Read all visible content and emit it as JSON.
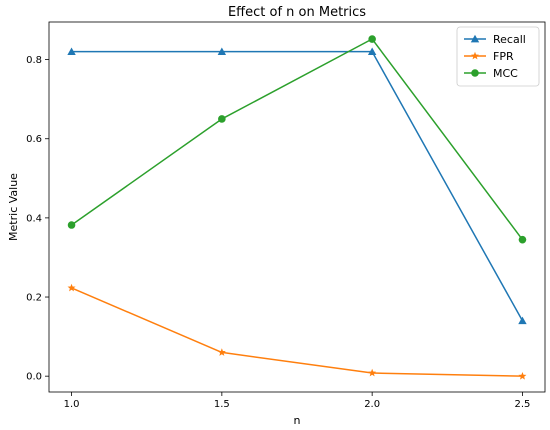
{
  "chart_data": {
    "type": "line",
    "title": "Effect of n on Metrics",
    "xlabel": "n",
    "ylabel": "Metric Value",
    "x": [
      1.0,
      1.5,
      2.0,
      2.5
    ],
    "xlim": [
      0.925,
      2.575
    ],
    "ylim": [
      -0.04,
      0.895
    ],
    "xticks": [
      1.0,
      1.5,
      2.0,
      2.5
    ],
    "xtick_labels": [
      "1.0",
      "1.5",
      "2.0",
      "2.5"
    ],
    "yticks": [
      0.0,
      0.2,
      0.4,
      0.6,
      0.8
    ],
    "ytick_labels": [
      "0.0",
      "0.2",
      "0.4",
      "0.6",
      "0.8"
    ],
    "grid": false,
    "legend_position": "top-right",
    "series": [
      {
        "name": "Recall",
        "values": [
          0.82,
          0.82,
          0.82,
          0.14
        ],
        "color": "#1f77b4",
        "marker": "triangle"
      },
      {
        "name": "FPR",
        "values": [
          0.223,
          0.06,
          0.008,
          0.0
        ],
        "color": "#ff7f0e",
        "marker": "star"
      },
      {
        "name": "MCC",
        "values": [
          0.382,
          0.65,
          0.852,
          0.345
        ],
        "color": "#2ca02c",
        "marker": "circle"
      }
    ]
  }
}
